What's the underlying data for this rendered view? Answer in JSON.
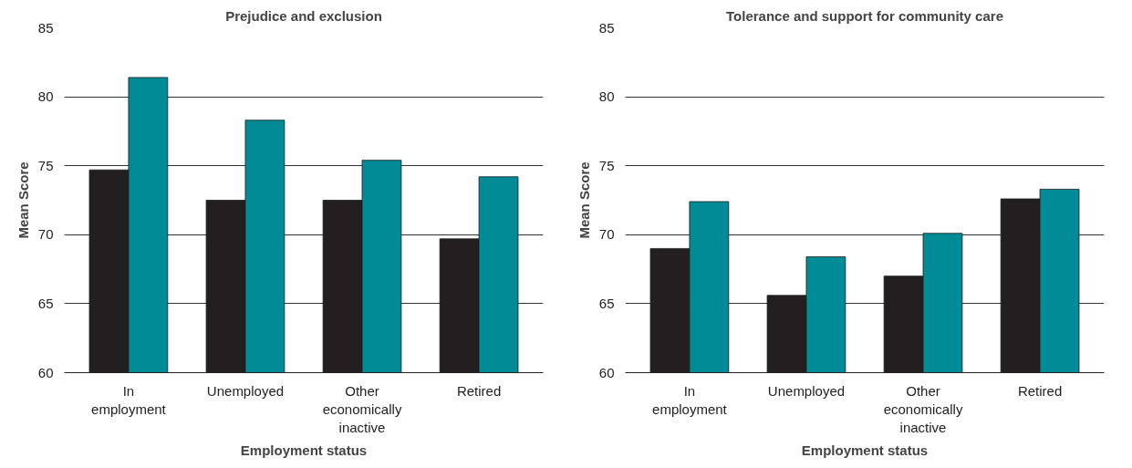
{
  "chart_data": [
    {
      "type": "bar",
      "title": "Prejudice and exclusion",
      "xlabel": "Employment status",
      "ylabel": "Mean Score",
      "categories": [
        "In employment",
        "Unemployed",
        "Other economically inactive",
        "Retired"
      ],
      "series": [
        {
          "color": "#231f20",
          "values": [
            74.7,
            72.5,
            72.5,
            69.7
          ]
        },
        {
          "color": "#008b96",
          "values": [
            81.4,
            78.3,
            75.4,
            74.2
          ]
        }
      ],
      "ylim": [
        60,
        85
      ],
      "yticks": [
        60,
        65,
        70,
        75,
        80,
        85
      ],
      "grid": "y"
    },
    {
      "type": "bar",
      "title": "Tolerance and support for community care",
      "xlabel": "Employment status",
      "ylabel": "Mean Score",
      "categories": [
        "In employment",
        "Unemployed",
        "Other economically inactive",
        "Retired"
      ],
      "series": [
        {
          "color": "#231f20",
          "values": [
            69.0,
            65.6,
            67.0,
            72.6
          ]
        },
        {
          "color": "#008b96",
          "values": [
            72.4,
            68.4,
            70.1,
            73.3
          ]
        }
      ],
      "ylim": [
        60,
        85
      ],
      "yticks": [
        60,
        65,
        70,
        75,
        80,
        85
      ],
      "grid": "y"
    }
  ]
}
